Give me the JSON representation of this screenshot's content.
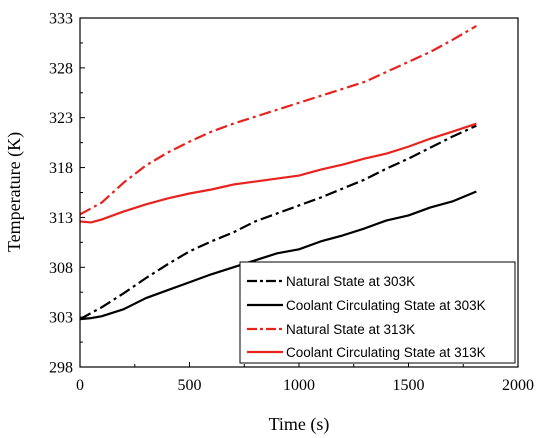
{
  "chart_data": {
    "type": "line",
    "title": "",
    "xlabel": "Time (s)",
    "ylabel": "Temperature (K)",
    "xlim": [
      0,
      2000
    ],
    "ylim": [
      298,
      333
    ],
    "x_ticks": [
      0,
      500,
      1000,
      1500,
      2000
    ],
    "x_tick_labels": [
      "0",
      "500",
      "1000",
      "1500",
      "2000"
    ],
    "y_ticks": [
      298,
      303,
      308,
      313,
      318,
      323,
      328,
      333
    ],
    "y_tick_labels": [
      "298",
      "303",
      "308",
      "313",
      "318",
      "323",
      "328",
      "333"
    ],
    "grid": false,
    "legend_position": "bottom-right",
    "series": [
      {
        "name": "Natural State at 303K",
        "color": "#000000",
        "dash": "dash-dot",
        "x": [
          0,
          100,
          200,
          300,
          400,
          500,
          600,
          700,
          800,
          900,
          1000,
          1100,
          1200,
          1300,
          1400,
          1500,
          1600,
          1700,
          1810
        ],
        "y": [
          302.8,
          304.0,
          305.4,
          306.9,
          308.3,
          309.6,
          310.6,
          311.5,
          312.6,
          313.4,
          314.2,
          315.0,
          315.9,
          316.8,
          317.9,
          318.9,
          320.0,
          321.1,
          322.2
        ]
      },
      {
        "name": "Coolant Circulating State at 303K",
        "color": "#000000",
        "dash": "solid",
        "x": [
          0,
          50,
          100,
          200,
          300,
          400,
          500,
          600,
          700,
          800,
          900,
          1000,
          1100,
          1200,
          1300,
          1400,
          1500,
          1600,
          1700,
          1810
        ],
        "y": [
          302.8,
          302.9,
          303.1,
          303.8,
          304.9,
          305.7,
          306.5,
          307.3,
          308.0,
          308.7,
          309.4,
          309.8,
          310.6,
          311.2,
          311.9,
          312.7,
          313.2,
          314.0,
          314.6,
          315.6
        ]
      },
      {
        "name": "Natural State at 313K",
        "color": "#e8231e",
        "dash": "dash-dot",
        "x": [
          0,
          100,
          200,
          300,
          400,
          500,
          600,
          700,
          800,
          900,
          1000,
          1100,
          1200,
          1300,
          1400,
          1500,
          1600,
          1700,
          1810
        ],
        "y": [
          313.3,
          314.5,
          316.5,
          318.2,
          319.5,
          320.6,
          321.6,
          322.4,
          323.1,
          323.8,
          324.5,
          325.2,
          325.9,
          326.6,
          327.6,
          328.6,
          329.6,
          330.8,
          332.2
        ]
      },
      {
        "name": "Coolant Circulating State at 313K",
        "color": "#e8231e",
        "dash": "solid",
        "x": [
          0,
          50,
          100,
          200,
          300,
          400,
          500,
          600,
          700,
          800,
          900,
          1000,
          1100,
          1200,
          1300,
          1400,
          1500,
          1600,
          1700,
          1810
        ],
        "y": [
          312.6,
          312.5,
          312.8,
          313.6,
          314.3,
          314.9,
          315.4,
          315.8,
          316.3,
          316.6,
          316.9,
          317.2,
          317.8,
          318.3,
          318.9,
          319.4,
          320.1,
          320.9,
          321.6,
          322.4
        ]
      }
    ]
  }
}
